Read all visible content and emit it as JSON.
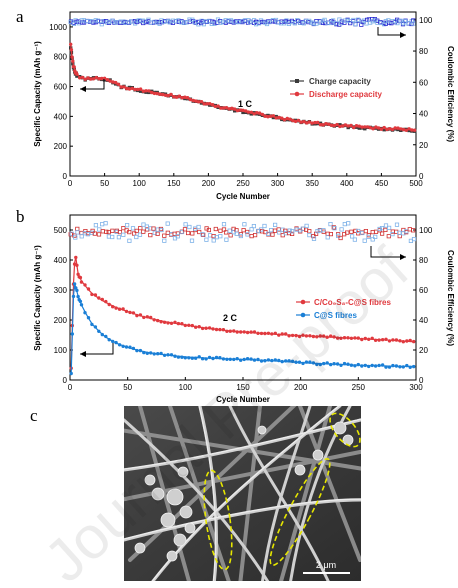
{
  "panel_labels": [
    "a",
    "b",
    "c"
  ],
  "watermark_text": "Journal Pre-proof",
  "scale_bar_label": "2 μm",
  "colors": {
    "charge": "#3a3a3a",
    "discharge": "#e0393e",
    "blue": "#1a7fd6",
    "ce_blue": "#2a2ad0",
    "ce_light": "#7fb2e8",
    "ce_red": "#d03030",
    "highlight": "#e6e600"
  },
  "chart_data": [
    {
      "id": "a",
      "type": "line",
      "xlabel": "Cycle Number",
      "ylabel": "Specific Capacity (mAh g⁻¹)",
      "y2label": "Coulombic Efficiency (%)",
      "xlim": [
        0,
        500
      ],
      "ylim": [
        0,
        1100
      ],
      "y2lim": [
        0,
        105
      ],
      "xticks": [
        0,
        50,
        100,
        150,
        200,
        250,
        300,
        350,
        400,
        450,
        500
      ],
      "yticks": [
        0,
        200,
        400,
        600,
        800,
        1000
      ],
      "y2ticks": [
        0,
        20,
        40,
        60,
        80,
        100
      ],
      "rate_label": "1 C",
      "legend_position": "right",
      "series": [
        {
          "name": "Charge capacity",
          "color": "#3a3a3a",
          "x": [
            1,
            3,
            5,
            8,
            12,
            18,
            25,
            35,
            45,
            55,
            65,
            75,
            90,
            110,
            130,
            150,
            170,
            190,
            210,
            230,
            250,
            270,
            290,
            310,
            330,
            350,
            370,
            390,
            410,
            430,
            450,
            470,
            490,
            500
          ],
          "y": [
            860,
            790,
            730,
            690,
            665,
            655,
            650,
            652,
            655,
            645,
            620,
            597,
            585,
            567,
            552,
            536,
            517,
            493,
            466,
            448,
            432,
            417,
            398,
            380,
            367,
            355,
            345,
            336,
            330,
            323,
            318,
            314,
            309,
            305
          ]
        },
        {
          "name": "Discharge capacity",
          "color": "#e0393e",
          "x": [
            1,
            3,
            5,
            8,
            12,
            18,
            25,
            35,
            45,
            55,
            65,
            75,
            90,
            110,
            130,
            150,
            170,
            190,
            210,
            230,
            250,
            270,
            290,
            310,
            330,
            350,
            370,
            390,
            410,
            430,
            450,
            470,
            490,
            500
          ],
          "y": [
            880,
            800,
            740,
            695,
            668,
            658,
            652,
            654,
            657,
            647,
            622,
            599,
            587,
            569,
            554,
            538,
            519,
            495,
            468,
            450,
            434,
            419,
            400,
            382,
            369,
            357,
            347,
            338,
            332,
            325,
            320,
            316,
            311,
            307
          ]
        },
        {
          "name": "Coulombic efficiency",
          "axis": "right",
          "color": "#2a2ad0",
          "marker": "square",
          "values_pct": [
            97,
            100
          ]
        }
      ]
    },
    {
      "id": "b",
      "type": "line",
      "xlabel": "Cycle Number",
      "ylabel": "Specific Capacity (mAh g⁻¹)",
      "y2label": "Coulombic Efficiency (%)",
      "xlim": [
        0,
        300
      ],
      "ylim": [
        0,
        550
      ],
      "y2lim": [
        0,
        110
      ],
      "xticks": [
        0,
        50,
        100,
        150,
        200,
        250,
        300
      ],
      "yticks": [
        0,
        100,
        200,
        300,
        400,
        500
      ],
      "y2ticks": [
        0,
        20,
        40,
        60,
        80,
        100
      ],
      "rate_label": "2 C",
      "legend_position": "right",
      "series": [
        {
          "name": "C/Co₉S₈-C@S fibres",
          "color": "#e0393e",
          "x": [
            1,
            2,
            3,
            4,
            5,
            7,
            10,
            15,
            20,
            30,
            40,
            50,
            60,
            70,
            80,
            100,
            120,
            140,
            160,
            180,
            200,
            220,
            240,
            260,
            280,
            300
          ],
          "y": [
            40,
            180,
            320,
            390,
            410,
            355,
            330,
            305,
            285,
            260,
            242,
            228,
            215,
            205,
            196,
            183,
            172,
            163,
            157,
            152,
            148,
            144,
            140,
            136,
            132,
            127
          ]
        },
        {
          "name": "C@S fibres",
          "color": "#1a7fd6",
          "x": [
            1,
            2,
            3,
            4,
            5,
            7,
            10,
            15,
            20,
            30,
            40,
            50,
            60,
            70,
            80,
            100,
            120,
            140,
            160,
            180,
            200,
            220,
            240,
            260,
            280,
            300
          ],
          "y": [
            20,
            150,
            280,
            320,
            310,
            280,
            250,
            212,
            182,
            145,
            123,
            108,
            98,
            90,
            85,
            77,
            73,
            70,
            67,
            63,
            58,
            54,
            51,
            48,
            46,
            45
          ]
        },
        {
          "name": "Coulombic efficiency",
          "axis": "right",
          "marker": "square",
          "values_pct": [
            92,
            104
          ]
        }
      ]
    }
  ]
}
